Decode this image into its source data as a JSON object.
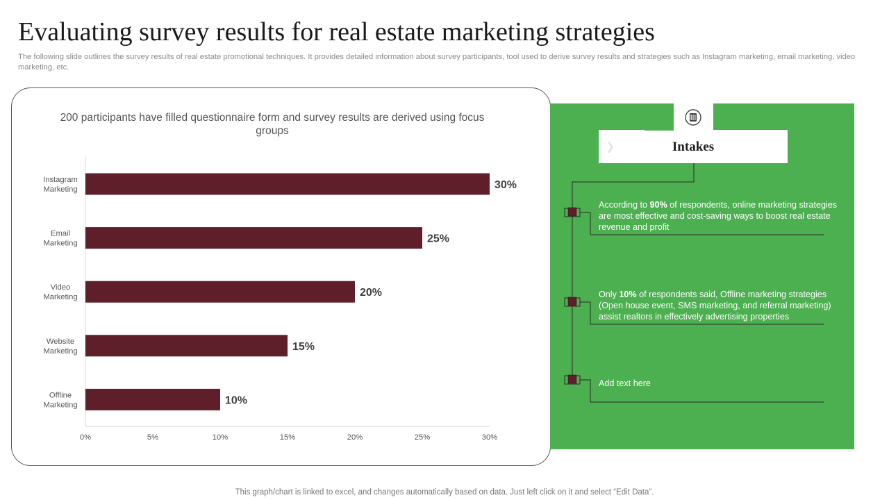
{
  "page": {
    "title": "Evaluating survey results for real estate marketing strategies",
    "subtitle": "The following slide outlines the survey results of real estate promotional techniques. It provides detailed information about survey participants, tool used to derive survey results and strategies such as Instagram marketing, email marketing, video marketing, etc.",
    "footer": "This graph/chart is linked to excel,  and changes automatically based on data. Just left click on it and select “Edit Data”."
  },
  "chart_caption": "200 participants have filled questionnaire form and survey results are derived using focus groups",
  "chart_data": {
    "type": "bar",
    "orientation": "horizontal",
    "categories": [
      "Instagram Marketing",
      "Email Marketing",
      "Video Marketing",
      "Website Marketing",
      "Offline Marketing"
    ],
    "category_lines": [
      [
        "Instagram",
        "Marketing"
      ],
      [
        "Email",
        "Marketing"
      ],
      [
        "Video",
        "Marketing"
      ],
      [
        "Website",
        "Marketing"
      ],
      [
        "Offline",
        "Marketing"
      ]
    ],
    "values": [
      30,
      25,
      20,
      15,
      10
    ],
    "value_labels": [
      "30%",
      "25%",
      "20%",
      "15%",
      "10%"
    ],
    "x_ticks": [
      0,
      5,
      10,
      15,
      20,
      25,
      30
    ],
    "x_tick_labels": [
      "0%",
      "5%",
      "10%",
      "15%",
      "20%",
      "25%",
      "30%"
    ],
    "xlim": [
      0,
      30
    ],
    "grid": false,
    "bar_color": "#5e1f2a"
  },
  "intakes": {
    "heading": "Intakes",
    "icon": "server-icon",
    "panel_color": "#4caf50",
    "marker_color": "#5e1f2a",
    "items": [
      {
        "pre": "According to ",
        "bold": "90%",
        "post": " of respondents, online marketing strategies are most effective and cost-saving ways to boost real estate revenue and profit"
      },
      {
        "pre": "Only ",
        "bold": "10%",
        "post": " of respondents said, Offline marketing strategies (Open house event, SMS marketing, and referral marketing) assist realtors in effectively advertising properties"
      },
      {
        "pre": "Add text here",
        "bold": "",
        "post": ""
      }
    ]
  }
}
